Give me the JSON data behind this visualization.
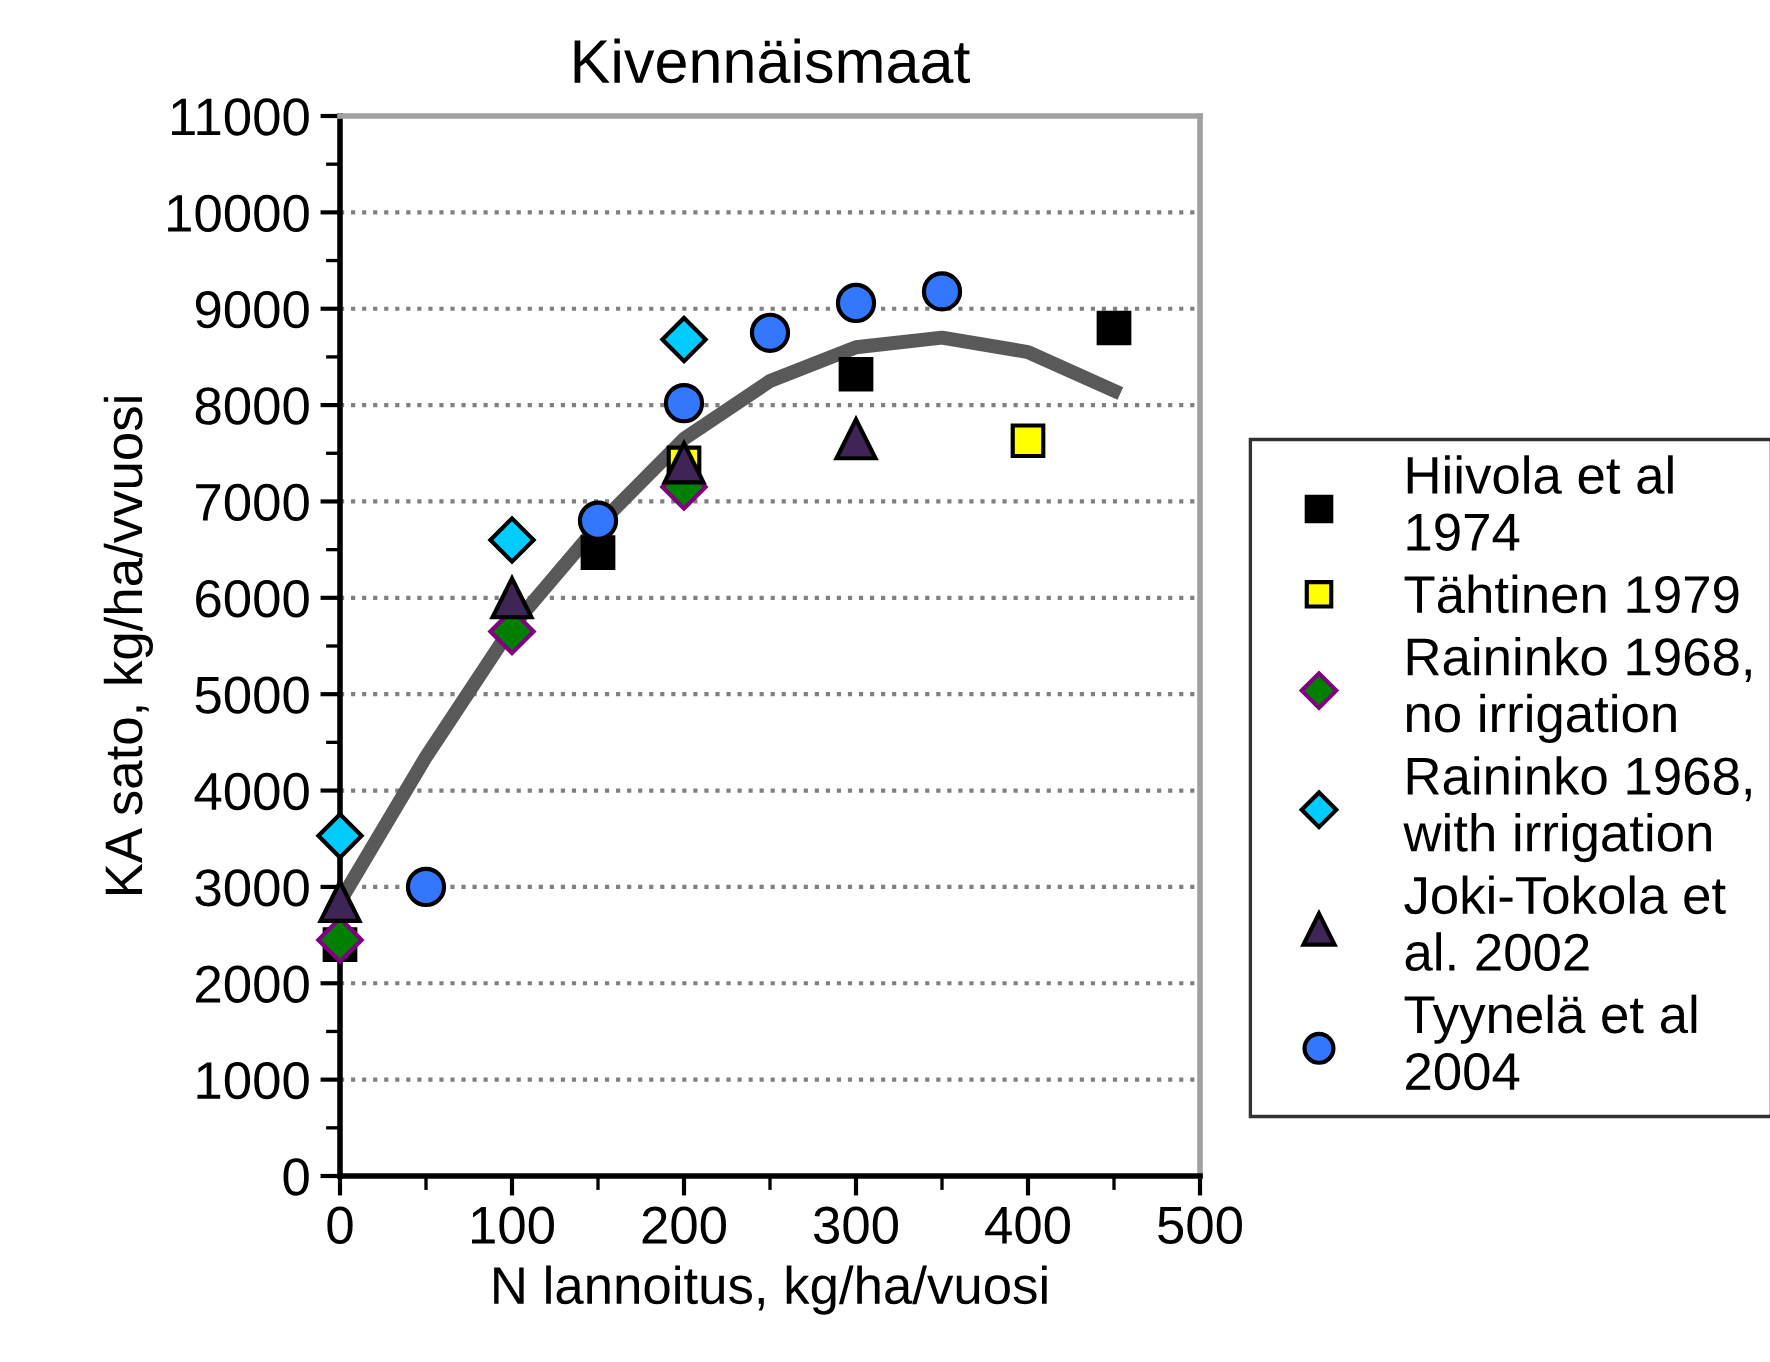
{
  "chart_data": {
    "type": "scatter",
    "title": "Kivennäismaat",
    "xlabel": "N lannoitus, kg/ha/vuosi",
    "ylabel": "KA sato, kg/ha/vvuosi",
    "xlim": [
      0,
      500
    ],
    "xticks": [
      0,
      100,
      200,
      300,
      400,
      500
    ],
    "ylim": [
      0,
      11000
    ],
    "yticks": [
      0,
      1000,
      2000,
      3000,
      4000,
      5000,
      6000,
      7000,
      8000,
      9000,
      10000,
      11000
    ],
    "grid": "y",
    "legend": "right",
    "series": [
      {
        "type": "line",
        "color": "#595959",
        "x": [
          0,
          50,
          100,
          150,
          200,
          250,
          300,
          350,
          400,
          450
        ],
        "values": [
          2850,
          4350,
          5700,
          6750,
          7650,
          8250,
          8600,
          8700,
          8550,
          8150
        ],
        "marker": "none",
        "line_style": "solid"
      },
      {
        "name": "Hiivola et al 1974",
        "color": "#000000",
        "marker": "square",
        "x": [
          0,
          150,
          200,
          300,
          450
        ],
        "values": [
          2400,
          6470,
          null,
          8320,
          8800
        ]
      },
      {
        "name": "Tähtinen 1979",
        "color": "#ffff00",
        "marker": "square",
        "x": [
          200,
          400
        ],
        "values": [
          7400,
          7630
        ]
      },
      {
        "name": "Raininko 1968, no irrigation",
        "color": "#008000",
        "marker": "diamond",
        "x": [
          0,
          100,
          200
        ],
        "values": [
          2450,
          5650,
          7150
        ]
      },
      {
        "name": "Raininko 1968, with irrigation",
        "color": "#00ccff",
        "marker": "diamond",
        "x": [
          0,
          100,
          200
        ],
        "values": [
          3530,
          6600,
          8680
        ]
      },
      {
        "name": "Joki-Tokola et al. 2002",
        "color": "#3f2456",
        "marker": "triangle",
        "x": [
          0,
          100,
          200,
          300
        ],
        "values": [
          2850,
          6000,
          7400,
          7650
        ]
      },
      {
        "name": "Tyynelä et al 2004",
        "color": "#3377ff",
        "marker": "circle",
        "x": [
          50,
          150,
          200,
          250,
          300,
          350
        ],
        "values": [
          3000,
          6800,
          8020,
          8750,
          9060,
          9180
        ]
      }
    ]
  }
}
